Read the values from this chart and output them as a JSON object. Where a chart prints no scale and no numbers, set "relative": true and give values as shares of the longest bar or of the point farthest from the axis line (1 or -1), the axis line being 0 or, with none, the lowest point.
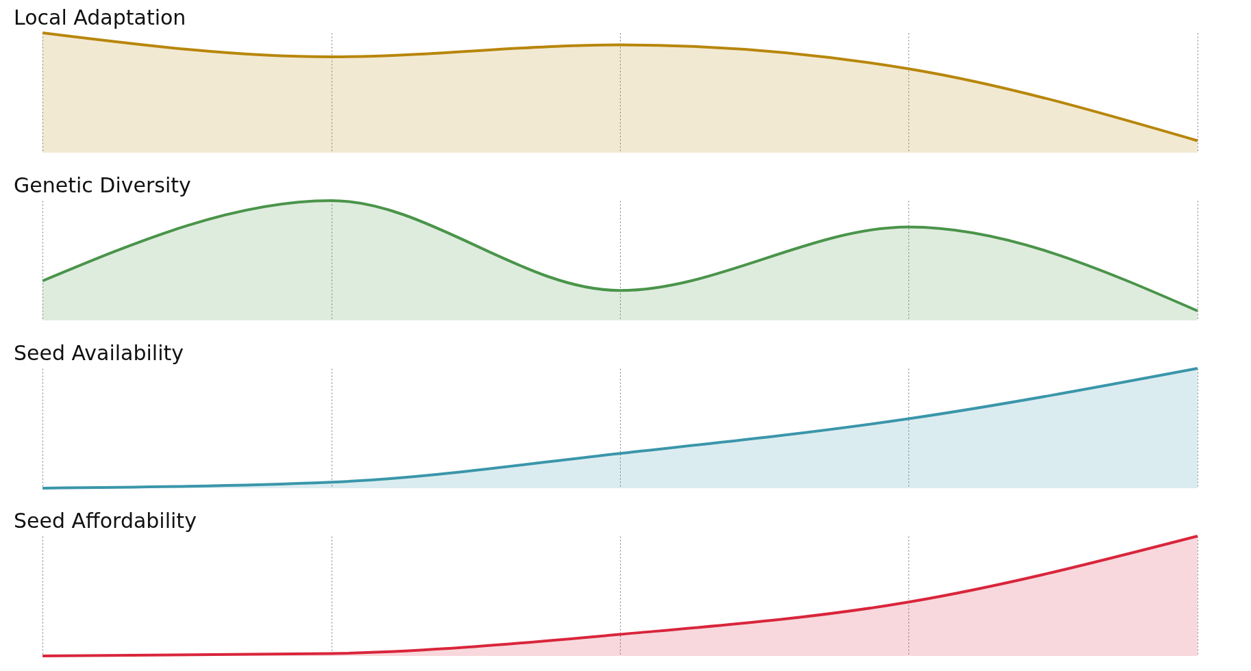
{
  "chart_data": [
    {
      "type": "area",
      "title": "Local Adaptation",
      "categories": [
        null,
        null,
        null,
        null,
        null
      ],
      "relative": true,
      "grid": "x",
      "series": [
        {
          "color": "#b8860b",
          "values": [
            1,
            0.8,
            0.9,
            0.7,
            0.1
          ]
        }
      ]
    },
    {
      "type": "area",
      "title": "Genetic Diversity",
      "categories": [
        null,
        null,
        null,
        null,
        null
      ],
      "relative": true,
      "grid": "x",
      "series": [
        {
          "color": "#4a944a",
          "values": [
            0.33,
            1,
            0.25,
            0.78,
            0.08
          ]
        }
      ]
    },
    {
      "type": "area",
      "title": "Seed Availability",
      "categories": [
        null,
        null,
        null,
        null,
        null
      ],
      "relative": true,
      "grid": "x",
      "series": [
        {
          "color": "#3a96aa",
          "values": [
            0,
            0.05,
            0.29,
            0.58,
            1
          ]
        }
      ]
    },
    {
      "type": "area",
      "title": "Seed Affordability",
      "categories": [
        null,
        null,
        null,
        null,
        null
      ],
      "relative": true,
      "grid": "x",
      "series": [
        {
          "color": "#d9253b",
          "values": [
            0,
            0.02,
            0.18,
            0.45,
            1
          ]
        }
      ]
    }
  ]
}
